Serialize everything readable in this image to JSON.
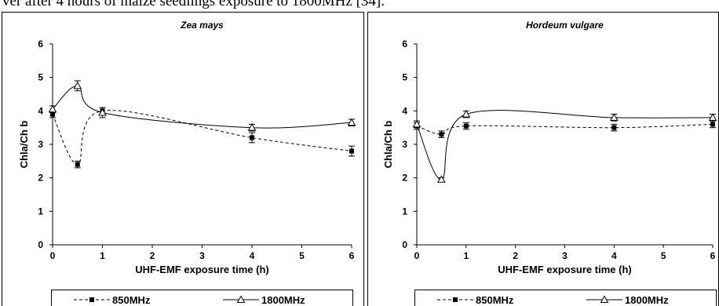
{
  "caption_fragment": "ver after 4 hours of maize seedlings exposure to 1800MHz [34].",
  "colors": {
    "axis": "#000000",
    "frame": "#000000",
    "series": "#000000",
    "background": "#ffffff"
  },
  "chart_data": [
    {
      "type": "line",
      "title": "Zea mays",
      "xlabel": "UHF-EMF exposure time (h)",
      "ylabel": "Chla/Ch b",
      "xlim": [
        0,
        6
      ],
      "ylim": [
        0,
        6
      ],
      "xticks": [
        "0",
        "1",
        "2",
        "3",
        "4",
        "5",
        "6"
      ],
      "yticks": [
        "0",
        "1",
        "2",
        "3",
        "4",
        "5",
        "6"
      ],
      "grid": false,
      "legend_position": "bottom",
      "series": [
        {
          "name": "850MHz",
          "style": "dashed",
          "marker": "filled-square",
          "x": [
            0,
            0.5,
            1,
            4,
            6
          ],
          "y": [
            3.9,
            2.4,
            4.0,
            3.2,
            2.8
          ],
          "err": [
            0.1,
            0.1,
            0.1,
            0.15,
            0.15
          ]
        },
        {
          "name": "1800MHz",
          "style": "solid",
          "marker": "open-triangle",
          "x": [
            0,
            0.5,
            1,
            4,
            6
          ],
          "y": [
            4.05,
            4.75,
            3.95,
            3.5,
            3.65
          ],
          "err": [
            0.1,
            0.15,
            0.15,
            0.1,
            0.1
          ]
        }
      ]
    },
    {
      "type": "line",
      "title": "Hordeum vulgare",
      "xlabel": "UHF-EMF exposure time (h)",
      "ylabel": "Chla/Ch b",
      "xlim": [
        0,
        6
      ],
      "ylim": [
        0,
        6
      ],
      "xticks": [
        "0",
        "1",
        "2",
        "3",
        "4",
        "5",
        "6"
      ],
      "yticks": [
        "0",
        "1",
        "2",
        "3",
        "4",
        "5",
        "6"
      ],
      "grid": false,
      "legend_position": "bottom",
      "series": [
        {
          "name": "850MHz",
          "style": "dashed",
          "marker": "filled-square",
          "x": [
            0,
            0.5,
            1,
            4,
            6
          ],
          "y": [
            3.55,
            3.3,
            3.55,
            3.5,
            3.6
          ],
          "err": [
            0.1,
            0.1,
            0.1,
            0.1,
            0.1
          ]
        },
        {
          "name": "1800MHz",
          "style": "solid",
          "marker": "open-triangle",
          "x": [
            0,
            0.5,
            1,
            4,
            6
          ],
          "y": [
            3.6,
            1.95,
            3.9,
            3.8,
            3.8
          ],
          "err": [
            0.1,
            0.05,
            0.1,
            0.1,
            0.1
          ]
        }
      ]
    }
  ]
}
